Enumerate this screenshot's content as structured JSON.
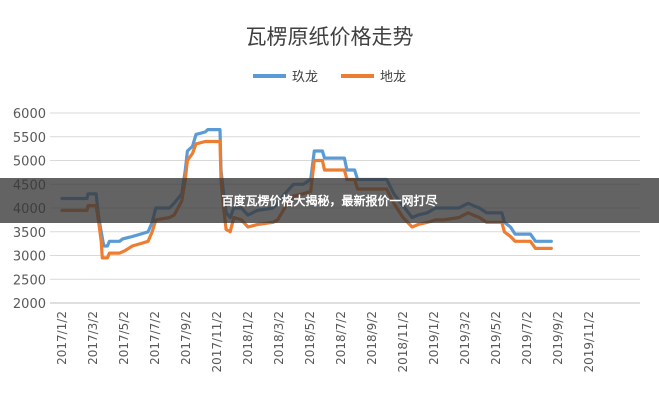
{
  "chart_data": {
    "type": "line",
    "title": "瓦楞原纸价格走势",
    "xlabel": "",
    "ylabel": "",
    "ylim": [
      2000,
      6000
    ],
    "yticks": [
      2000,
      2500,
      3000,
      3500,
      4000,
      4500,
      5000,
      5500,
      6000
    ],
    "xticks": [
      "2017/1/2",
      "2017/3/2",
      "2017/5/2",
      "2017/7/2",
      "2017/9/2",
      "2017/11/2",
      "2018/1/2",
      "2018/3/2",
      "2018/5/2",
      "2018/7/2",
      "2018/9/2",
      "2018/11/2",
      "2019/1/2",
      "2019/3/2",
      "2019/5/2",
      "2019/7/2",
      "2019/9/2",
      "2019/11/2"
    ],
    "grid": true,
    "legend_position": "top",
    "series": [
      {
        "name": "玖龙",
        "color": "#5B9BD5",
        "points": [
          [
            "2017/1/2",
            4200
          ],
          [
            "2017/2/20",
            4200
          ],
          [
            "2017/2/22",
            4300
          ],
          [
            "2017/3/10",
            4300
          ],
          [
            "2017/3/15",
            3800
          ],
          [
            "2017/3/20",
            3500
          ],
          [
            "2017/3/25",
            3200
          ],
          [
            "2017/4/1",
            3200
          ],
          [
            "2017/4/5",
            3300
          ],
          [
            "2017/4/25",
            3300
          ],
          [
            "2017/5/1",
            3350
          ],
          [
            "2017/5/20",
            3400
          ],
          [
            "2017/6/5",
            3450
          ],
          [
            "2017/6/20",
            3500
          ],
          [
            "2017/6/28",
            3700
          ],
          [
            "2017/7/5",
            4000
          ],
          [
            "2017/8/1",
            4000
          ],
          [
            "2017/8/10",
            4100
          ],
          [
            "2017/8/25",
            4300
          ],
          [
            "2017/9/1",
            4800
          ],
          [
            "2017/9/5",
            5200
          ],
          [
            "2017/9/15",
            5300
          ],
          [
            "2017/9/22",
            5550
          ],
          [
            "2017/10/10",
            5600
          ],
          [
            "2017/10/15",
            5650
          ],
          [
            "2017/11/8",
            5650
          ],
          [
            "2017/11/10",
            4800
          ],
          [
            "2017/11/15",
            4300
          ],
          [
            "2017/11/20",
            3900
          ],
          [
            "2017/11/28",
            3800
          ],
          [
            "2017/12/5",
            4000
          ],
          [
            "2017/12/20",
            4000
          ],
          [
            "2018/1/2",
            3850
          ],
          [
            "2018/1/20",
            3950
          ],
          [
            "2018/2/20",
            4000
          ],
          [
            "2018/3/1",
            4100
          ],
          [
            "2018/3/15",
            4300
          ],
          [
            "2018/4/1",
            4500
          ],
          [
            "2018/4/20",
            4500
          ],
          [
            "2018/5/5",
            4600
          ],
          [
            "2018/5/12",
            5200
          ],
          [
            "2018/5/28",
            5200
          ],
          [
            "2018/6/1",
            5050
          ],
          [
            "2018/6/25",
            5050
          ],
          [
            "2018/7/10",
            5050
          ],
          [
            "2018/7/15",
            4800
          ],
          [
            "2018/7/30",
            4800
          ],
          [
            "2018/8/5",
            4600
          ],
          [
            "2018/9/15",
            4600
          ],
          [
            "2018/10/1",
            4600
          ],
          [
            "2018/10/15",
            4300
          ],
          [
            "2018/11/2",
            4050
          ],
          [
            "2018/11/20",
            3800
          ],
          [
            "2018/12/1",
            3850
          ],
          [
            "2018/12/20",
            3900
          ],
          [
            "2019/1/5",
            4000
          ],
          [
            "2019/1/20",
            4000
          ],
          [
            "2019/2/20",
            4000
          ],
          [
            "2019/3/1",
            4050
          ],
          [
            "2019/3/10",
            4100
          ],
          [
            "2019/3/20",
            4050
          ],
          [
            "2019/4/1",
            4000
          ],
          [
            "2019/4/15",
            3900
          ],
          [
            "2019/5/15",
            3900
          ],
          [
            "2019/5/20",
            3700
          ],
          [
            "2019/6/1",
            3600
          ],
          [
            "2019/6/10",
            3450
          ],
          [
            "2019/7/10",
            3450
          ],
          [
            "2019/7/20",
            3300
          ],
          [
            "2019/8/20",
            3300
          ]
        ]
      },
      {
        "name": "地龙",
        "color": "#ED7D31",
        "points": [
          [
            "2017/1/2",
            3950
          ],
          [
            "2017/2/20",
            3950
          ],
          [
            "2017/2/22",
            4050
          ],
          [
            "2017/3/10",
            4050
          ],
          [
            "2017/3/15",
            3700
          ],
          [
            "2017/3/20",
            3300
          ],
          [
            "2017/3/22",
            2950
          ],
          [
            "2017/4/1",
            2950
          ],
          [
            "2017/4/5",
            3050
          ],
          [
            "2017/4/25",
            3050
          ],
          [
            "2017/5/5",
            3100
          ],
          [
            "2017/5/20",
            3200
          ],
          [
            "2017/6/5",
            3250
          ],
          [
            "2017/6/20",
            3300
          ],
          [
            "2017/6/28",
            3500
          ],
          [
            "2017/7/5",
            3750
          ],
          [
            "2017/8/1",
            3800
          ],
          [
            "2017/8/10",
            3850
          ],
          [
            "2017/8/25",
            4150
          ],
          [
            "2017/9/1",
            4600
          ],
          [
            "2017/9/5",
            5000
          ],
          [
            "2017/9/15",
            5150
          ],
          [
            "2017/9/22",
            5350
          ],
          [
            "2017/10/10",
            5400
          ],
          [
            "2017/11/8",
            5400
          ],
          [
            "2017/11/10",
            4600
          ],
          [
            "2017/11/15",
            4000
          ],
          [
            "2017/11/20",
            3550
          ],
          [
            "2017/11/28",
            3500
          ],
          [
            "2017/12/5",
            3800
          ],
          [
            "2017/12/20",
            3750
          ],
          [
            "2018/1/2",
            3600
          ],
          [
            "2018/1/20",
            3650
          ],
          [
            "2018/2/20",
            3700
          ],
          [
            "2018/3/1",
            3750
          ],
          [
            "2018/3/15",
            4000
          ],
          [
            "2018/4/1",
            4250
          ],
          [
            "2018/4/20",
            4300
          ],
          [
            "2018/5/5",
            4350
          ],
          [
            "2018/5/12",
            5000
          ],
          [
            "2018/5/28",
            5000
          ],
          [
            "2018/6/1",
            4800
          ],
          [
            "2018/6/25",
            4800
          ],
          [
            "2018/7/10",
            4800
          ],
          [
            "2018/7/15",
            4600
          ],
          [
            "2018/7/30",
            4600
          ],
          [
            "2018/8/5",
            4400
          ],
          [
            "2018/9/15",
            4400
          ],
          [
            "2018/10/1",
            4400
          ],
          [
            "2018/10/15",
            4100
          ],
          [
            "2018/11/2",
            3800
          ],
          [
            "2018/11/20",
            3600
          ],
          [
            "2018/12/1",
            3650
          ],
          [
            "2018/12/20",
            3700
          ],
          [
            "2019/1/5",
            3750
          ],
          [
            "2019/1/20",
            3750
          ],
          [
            "2019/2/20",
            3800
          ],
          [
            "2019/3/1",
            3850
          ],
          [
            "2019/3/10",
            3900
          ],
          [
            "2019/3/20",
            3850
          ],
          [
            "2019/4/1",
            3800
          ],
          [
            "2019/4/15",
            3700
          ],
          [
            "2019/5/15",
            3700
          ],
          [
            "2019/5/20",
            3500
          ],
          [
            "2019/6/1",
            3400
          ],
          [
            "2019/6/10",
            3300
          ],
          [
            "2019/7/10",
            3300
          ],
          [
            "2019/7/20",
            3150
          ],
          [
            "2019/8/20",
            3150
          ]
        ]
      }
    ]
  },
  "banner": {
    "text": "百度瓦楞价格大揭秘，最新报价一网打尽"
  }
}
